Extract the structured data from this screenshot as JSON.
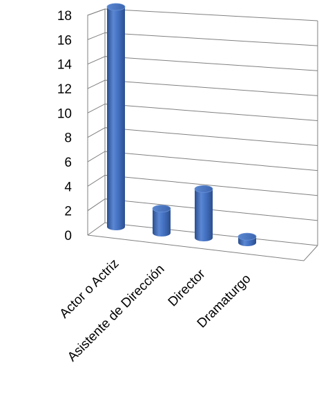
{
  "chart_data": {
    "type": "bar",
    "style": "3d-cylinder",
    "categories": [
      "Actor o Actriz",
      "Asistente de Dirección",
      "Director",
      "Dramaturgo"
    ],
    "values": [
      18,
      2,
      4,
      0.5
    ],
    "ylim": [
      0,
      18
    ],
    "yticks": [
      "0",
      "2",
      "4",
      "6",
      "8",
      "10",
      "12",
      "14",
      "16",
      "18"
    ],
    "grid": true,
    "legend": "none",
    "colors": {
      "bar": "#4472c4",
      "grid": "#7f7f7f"
    }
  }
}
